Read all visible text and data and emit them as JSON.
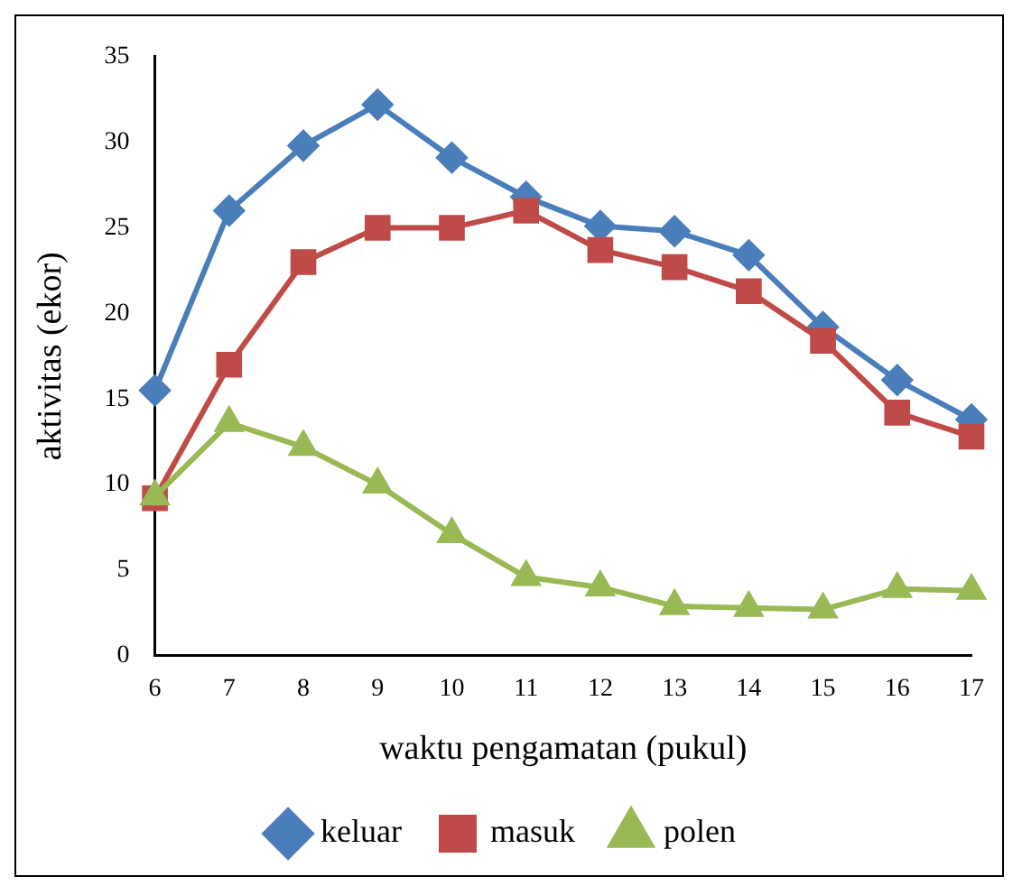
{
  "chart_data": {
    "type": "line",
    "xlabel": "waktu pengamatan (pukul)",
    "ylabel": "aktivitas (ekor)",
    "categories": [
      "6",
      "7",
      "8",
      "9",
      "10",
      "11",
      "12",
      "13",
      "14",
      "15",
      "16",
      "17"
    ],
    "series": [
      {
        "name": "keluar",
        "color": "#4a7ebb",
        "marker": "diamond",
        "values": [
          15.5,
          26,
          29.8,
          32.2,
          29.1,
          26.8,
          25.1,
          24.8,
          23.4,
          19.2,
          16.1,
          13.8
        ]
      },
      {
        "name": "masuk",
        "color": "#be4b48",
        "marker": "square",
        "values": [
          9.2,
          17,
          23,
          25,
          25,
          26,
          23.7,
          22.7,
          21.3,
          18.4,
          14.2,
          12.8
        ]
      },
      {
        "name": "polen",
        "color": "#98b954",
        "marker": "triangle",
        "values": [
          9.3,
          13.6,
          12.2,
          10,
          7.1,
          4.6,
          4,
          2.9,
          2.8,
          2.7,
          3.9,
          3.8
        ]
      }
    ],
    "ylim": [
      0,
      35
    ],
    "yticks": [
      0,
      5,
      10,
      15,
      20,
      25,
      30,
      35
    ],
    "grid": false,
    "legend": "bottom",
    "line_style": "solid"
  }
}
